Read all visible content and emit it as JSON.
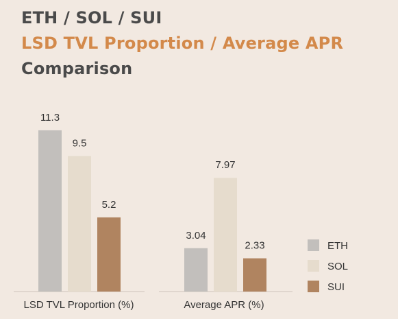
{
  "title": {
    "line1": "ETH / SOL / SUI",
    "line2": "LSD TVL Proportion / Average APR",
    "line3": "Comparison"
  },
  "colors": {
    "background": "#f2e9e1",
    "title_dark": "#4a4a4a",
    "title_accent": "#d3894a",
    "ETH": "#c2bfbc",
    "SOL": "#e6dccd",
    "SUI": "#b08460",
    "text": "#333333",
    "axis": "#d9d0c7"
  },
  "chart_data": {
    "type": "bar",
    "categories": [
      "LSD TVL Proportion (%)",
      "Average APR (%)"
    ],
    "series": [
      {
        "name": "ETH",
        "values": [
          11.3,
          3.04
        ],
        "labels": [
          "11.3",
          "3.04"
        ]
      },
      {
        "name": "SOL",
        "values": [
          9.5,
          7.97
        ],
        "labels": [
          "9.5",
          "7.97"
        ]
      },
      {
        "name": "SUI",
        "values": [
          5.2,
          2.33
        ],
        "labels": [
          "5.2",
          "2.33"
        ]
      }
    ],
    "ylim": [
      0,
      14.5
    ],
    "grid": false,
    "legend_position": "right"
  }
}
